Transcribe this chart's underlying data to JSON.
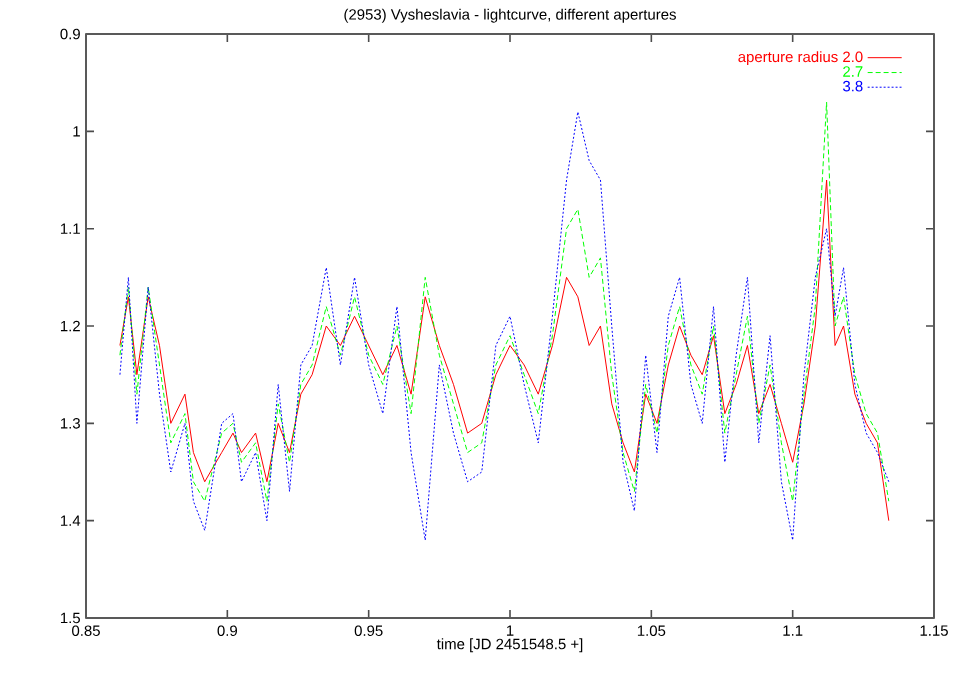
{
  "chart_data": {
    "type": "line",
    "title": "(2953) Vysheslavia - lightcurve, different apertures",
    "xlabel": "time [JD 2451548.5 +]",
    "x": [
      0.862,
      0.865,
      0.868,
      0.872,
      0.876,
      0.88,
      0.885,
      0.888,
      0.892,
      0.898,
      0.902,
      0.905,
      0.91,
      0.914,
      0.918,
      0.922,
      0.926,
      0.93,
      0.935,
      0.94,
      0.945,
      0.95,
      0.955,
      0.96,
      0.965,
      0.97,
      0.975,
      0.98,
      0.985,
      0.99,
      0.995,
      1.0,
      1.005,
      1.01,
      1.015,
      1.02,
      1.024,
      1.028,
      1.032,
      1.036,
      1.04,
      1.044,
      1.048,
      1.052,
      1.056,
      1.06,
      1.064,
      1.068,
      1.072,
      1.076,
      1.08,
      1.084,
      1.088,
      1.092,
      1.096,
      1.1,
      1.104,
      1.108,
      1.112,
      1.115,
      1.118,
      1.122,
      1.126,
      1.13,
      1.134
    ],
    "series": [
      {
        "name": "aperture radius 2.0",
        "color": "#ff0000",
        "line_style": "solid",
        "values": [
          1.22,
          1.17,
          1.25,
          1.17,
          1.22,
          1.3,
          1.27,
          1.33,
          1.36,
          1.33,
          1.31,
          1.33,
          1.31,
          1.36,
          1.3,
          1.33,
          1.27,
          1.25,
          1.2,
          1.22,
          1.19,
          1.22,
          1.25,
          1.22,
          1.27,
          1.17,
          1.22,
          1.26,
          1.31,
          1.3,
          1.25,
          1.22,
          1.24,
          1.27,
          1.22,
          1.15,
          1.17,
          1.22,
          1.2,
          1.28,
          1.32,
          1.35,
          1.27,
          1.3,
          1.24,
          1.2,
          1.23,
          1.25,
          1.21,
          1.29,
          1.26,
          1.22,
          1.29,
          1.26,
          1.3,
          1.34,
          1.28,
          1.2,
          1.05,
          1.22,
          1.2,
          1.27,
          1.3,
          1.32,
          1.4
        ]
      },
      {
        "name": "2.7",
        "color": "#00ff00",
        "line_style": "dashed",
        "values": [
          1.23,
          1.16,
          1.27,
          1.16,
          1.24,
          1.32,
          1.29,
          1.36,
          1.38,
          1.31,
          1.3,
          1.34,
          1.32,
          1.38,
          1.28,
          1.34,
          1.26,
          1.24,
          1.18,
          1.23,
          1.17,
          1.23,
          1.26,
          1.2,
          1.29,
          1.15,
          1.23,
          1.28,
          1.33,
          1.32,
          1.24,
          1.21,
          1.25,
          1.29,
          1.21,
          1.1,
          1.08,
          1.15,
          1.13,
          1.25,
          1.33,
          1.37,
          1.26,
          1.31,
          1.22,
          1.18,
          1.24,
          1.27,
          1.2,
          1.31,
          1.25,
          1.19,
          1.3,
          1.24,
          1.32,
          1.38,
          1.27,
          1.18,
          0.97,
          1.2,
          1.17,
          1.25,
          1.29,
          1.31,
          1.38
        ]
      },
      {
        "name": "3.8",
        "color": "#0000ff",
        "line_style": "dotted",
        "values": [
          1.25,
          1.15,
          1.3,
          1.16,
          1.27,
          1.35,
          1.3,
          1.38,
          1.41,
          1.3,
          1.29,
          1.36,
          1.33,
          1.4,
          1.26,
          1.37,
          1.24,
          1.22,
          1.14,
          1.24,
          1.15,
          1.24,
          1.29,
          1.18,
          1.33,
          1.42,
          1.24,
          1.31,
          1.36,
          1.35,
          1.22,
          1.19,
          1.26,
          1.32,
          1.19,
          1.05,
          0.98,
          1.03,
          1.05,
          1.2,
          1.34,
          1.39,
          1.23,
          1.33,
          1.19,
          1.15,
          1.26,
          1.3,
          1.18,
          1.34,
          1.23,
          1.15,
          1.32,
          1.21,
          1.36,
          1.42,
          1.25,
          1.15,
          1.1,
          1.19,
          1.14,
          1.26,
          1.31,
          1.33,
          1.36
        ]
      }
    ],
    "xlim": [
      0.85,
      1.15
    ],
    "xticks": [
      0.85,
      0.9,
      0.95,
      1,
      1.05,
      1.1,
      1.15
    ],
    "ylim": [
      1.5,
      0.9
    ],
    "yticks": [
      0.9,
      1,
      1.1,
      1.2,
      1.3,
      1.4,
      1.5
    ],
    "legend": "top right",
    "grid": false,
    "marker": "none"
  }
}
